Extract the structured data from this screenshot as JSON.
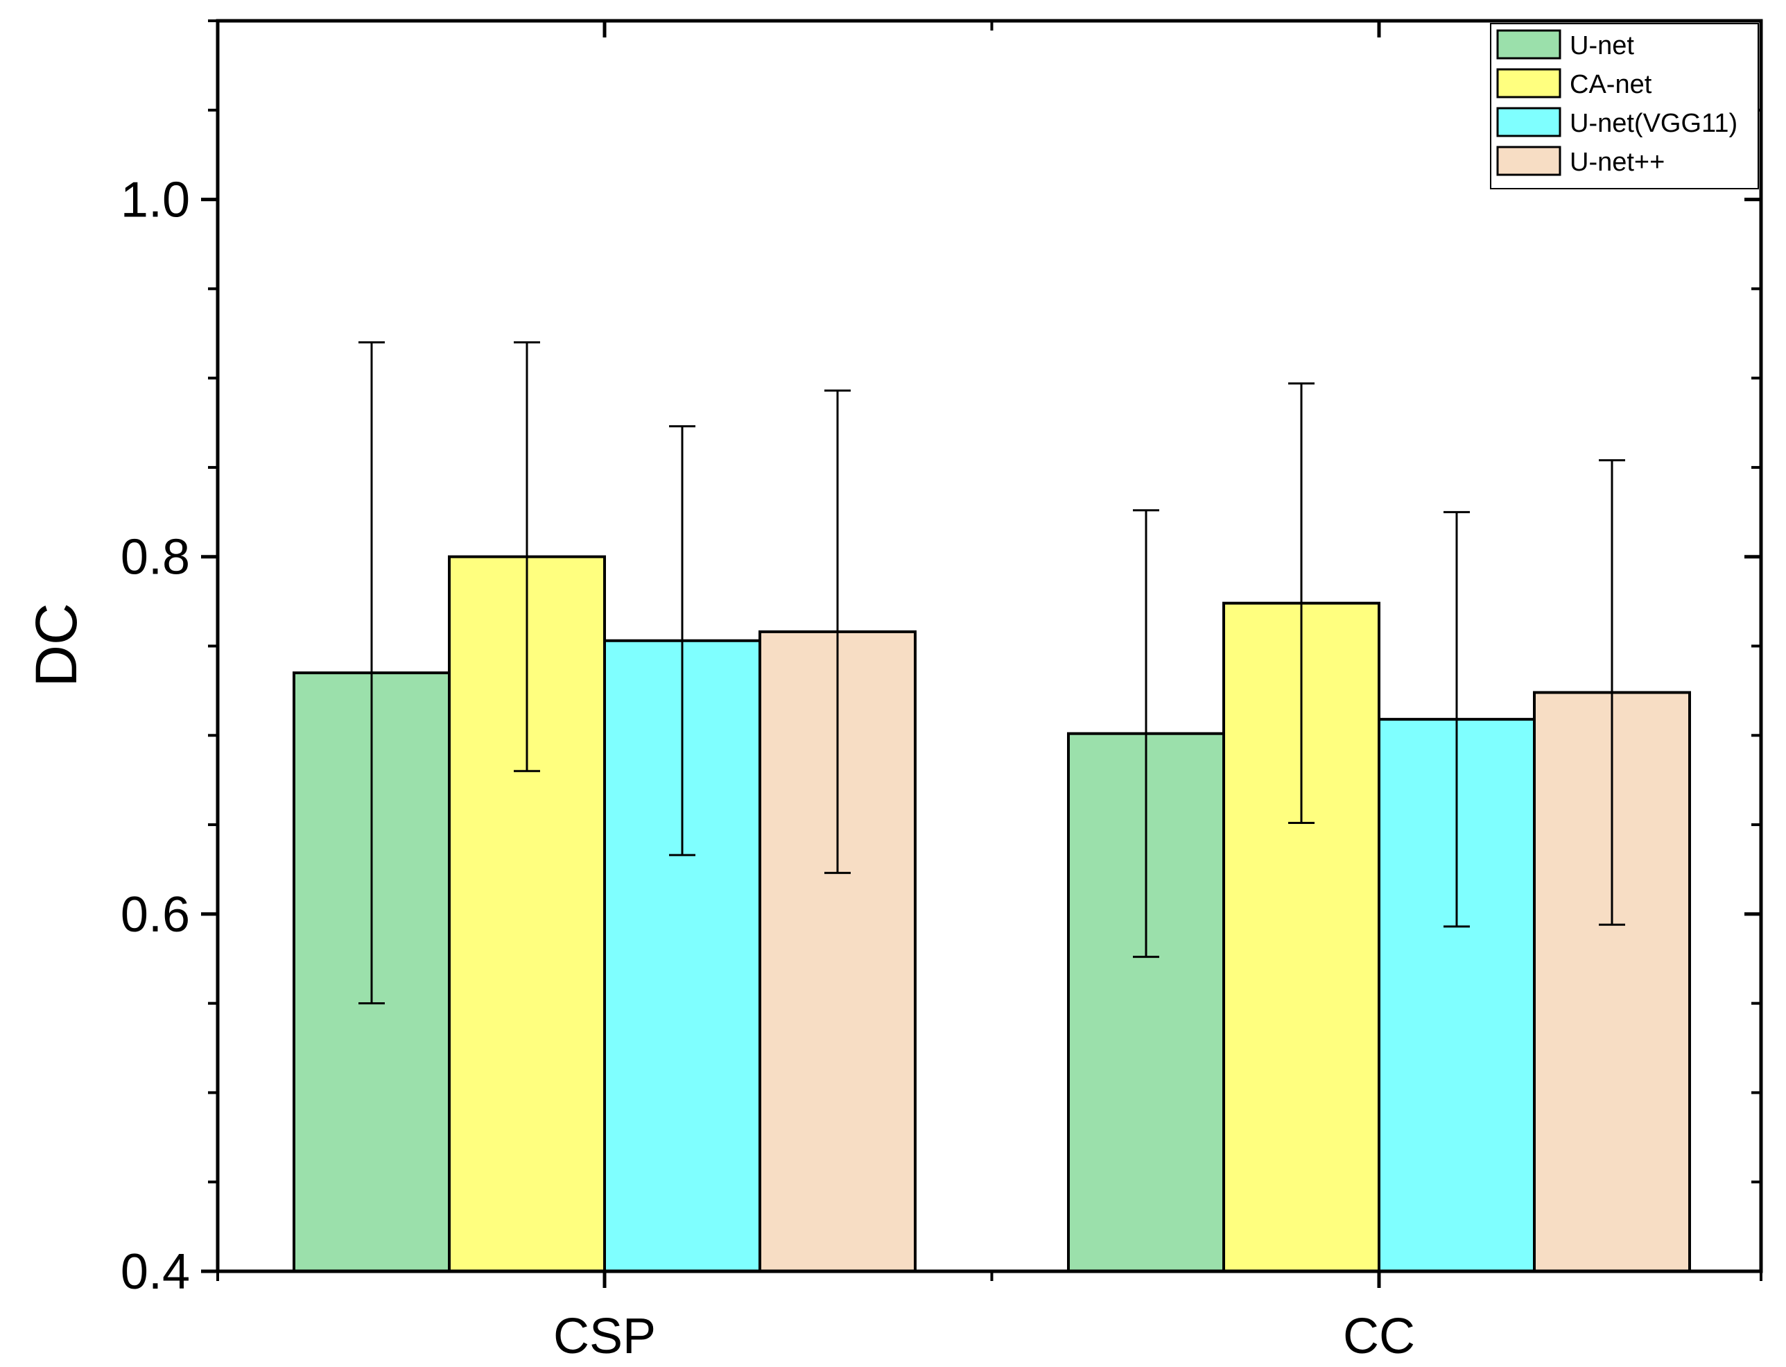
{
  "chart_data": {
    "type": "bar",
    "title": "",
    "xlabel": "",
    "ylabel": "DC",
    "ylim": [
      0.4,
      1.1
    ],
    "yticks": [
      0.4,
      0.6,
      0.8,
      1.0
    ],
    "ytick_labels": [
      "0.4",
      "0.6",
      "0.8",
      "1.0"
    ],
    "categories": [
      "CSP",
      "CC"
    ],
    "series": [
      {
        "name": "U-net",
        "color": "#9BE0AB",
        "values": [
          0.735,
          0.701
        ],
        "errors": [
          0.185,
          0.125
        ]
      },
      {
        "name": "CA-net",
        "color": "#FFFF7F",
        "values": [
          0.8,
          0.774
        ],
        "errors": [
          0.12,
          0.123
        ]
      },
      {
        "name": "U-net(VGG11)",
        "color": "#7FFFFF",
        "values": [
          0.753,
          0.709
        ],
        "errors": [
          0.12,
          0.116
        ]
      },
      {
        "name": "U-net++",
        "color": "#F7DDC4",
        "values": [
          0.758,
          0.724
        ],
        "errors": [
          0.135,
          0.13
        ]
      }
    ],
    "legend_position": "top-right",
    "grid": false
  }
}
